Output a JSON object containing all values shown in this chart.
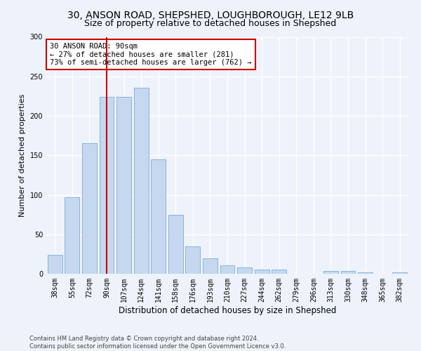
{
  "title1": "30, ANSON ROAD, SHEPSHED, LOUGHBOROUGH, LE12 9LB",
  "title2": "Size of property relative to detached houses in Shepshed",
  "xlabel": "Distribution of detached houses by size in Shepshed",
  "ylabel": "Number of detached properties",
  "categories": [
    "38sqm",
    "55sqm",
    "72sqm",
    "90sqm",
    "107sqm",
    "124sqm",
    "141sqm",
    "158sqm",
    "176sqm",
    "193sqm",
    "210sqm",
    "227sqm",
    "244sqm",
    "262sqm",
    "279sqm",
    "296sqm",
    "313sqm",
    "330sqm",
    "348sqm",
    "365sqm",
    "382sqm"
  ],
  "values": [
    24,
    97,
    165,
    224,
    224,
    236,
    145,
    75,
    35,
    20,
    11,
    8,
    5,
    5,
    0,
    0,
    4,
    4,
    2,
    0,
    2
  ],
  "bar_color": "#c5d8f0",
  "bar_edge_color": "#7aadd4",
  "vline_x_idx": 3,
  "vline_color": "#cc0000",
  "annotation_text": "30 ANSON ROAD: 90sqm\n← 27% of detached houses are smaller (281)\n73% of semi-detached houses are larger (762) →",
  "annotation_box_color": "#ffffff",
  "annotation_box_edge_color": "#cc0000",
  "ylim": [
    0,
    300
  ],
  "yticks": [
    0,
    50,
    100,
    150,
    200,
    250,
    300
  ],
  "background_color": "#eef2fa",
  "grid_color": "#ffffff",
  "footer": "Contains HM Land Registry data © Crown copyright and database right 2024.\nContains public sector information licensed under the Open Government Licence v3.0.",
  "title1_fontsize": 10,
  "title2_fontsize": 9,
  "xlabel_fontsize": 8.5,
  "ylabel_fontsize": 8,
  "tick_fontsize": 7,
  "annotation_fontsize": 7.5,
  "footer_fontsize": 6
}
